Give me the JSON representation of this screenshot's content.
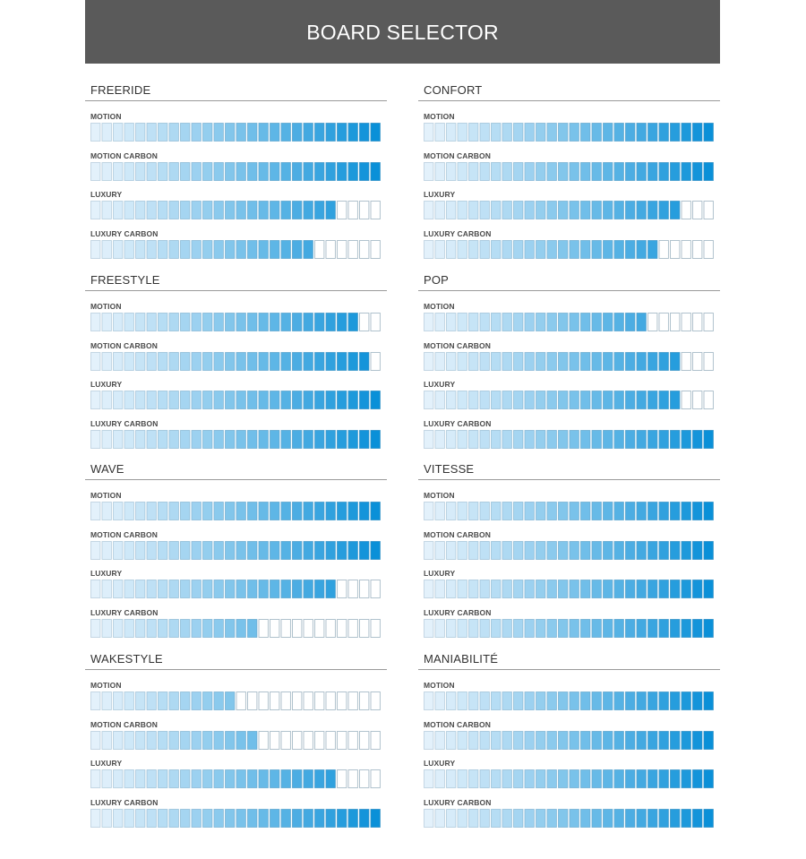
{
  "title": "BOARD SELECTOR",
  "total_segments": 26,
  "colors": {
    "header_bg": "#5a5a5a",
    "empty_border": "#a8bcc8",
    "gradient_start": "#e3f1fb",
    "gradient_end": "#0a90d8"
  },
  "boards": [
    "MOTION",
    "MOTION CARBON",
    "LUXURY",
    "LUXURY CARBON"
  ],
  "sections": [
    {
      "name": "FREERIDE",
      "ratings": [
        {
          "board": "MOTION",
          "filled": 26
        },
        {
          "board": "MOTION CARBON",
          "filled": 26
        },
        {
          "board": "LUXURY",
          "filled": 22
        },
        {
          "board": "LUXURY CARBON",
          "filled": 20
        }
      ]
    },
    {
      "name": "CONFORT",
      "ratings": [
        {
          "board": "MOTION",
          "filled": 26
        },
        {
          "board": "MOTION CARBON",
          "filled": 26
        },
        {
          "board": "LUXURY",
          "filled": 23
        },
        {
          "board": "LUXURY CARBON",
          "filled": 21
        }
      ]
    },
    {
      "name": "FREESTYLE",
      "ratings": [
        {
          "board": "MOTION",
          "filled": 24
        },
        {
          "board": "MOTION CARBON",
          "filled": 25
        },
        {
          "board": "LUXURY",
          "filled": 26
        },
        {
          "board": "LUXURY CARBON",
          "filled": 26
        }
      ]
    },
    {
      "name": "POP",
      "ratings": [
        {
          "board": "MOTION",
          "filled": 20
        },
        {
          "board": "MOTION CARBON",
          "filled": 23
        },
        {
          "board": "LUXURY",
          "filled": 23
        },
        {
          "board": "LUXURY CARBON",
          "filled": 26
        }
      ]
    },
    {
      "name": "WAVE",
      "ratings": [
        {
          "board": "MOTION",
          "filled": 26
        },
        {
          "board": "MOTION CARBON",
          "filled": 26
        },
        {
          "board": "LUXURY",
          "filled": 22
        },
        {
          "board": "LUXURY CARBON",
          "filled": 15
        }
      ]
    },
    {
      "name": "VITESSE",
      "ratings": [
        {
          "board": "MOTION",
          "filled": 26
        },
        {
          "board": "MOTION CARBON",
          "filled": 26
        },
        {
          "board": "LUXURY",
          "filled": 26
        },
        {
          "board": "LUXURY CARBON",
          "filled": 26
        }
      ]
    },
    {
      "name": "WAKESTYLE",
      "ratings": [
        {
          "board": "MOTION",
          "filled": 13
        },
        {
          "board": "MOTION CARBON",
          "filled": 15
        },
        {
          "board": "LUXURY",
          "filled": 22
        },
        {
          "board": "LUXURY CARBON",
          "filled": 26
        }
      ]
    },
    {
      "name": "MANIABILITÉ",
      "ratings": [
        {
          "board": "MOTION",
          "filled": 26
        },
        {
          "board": "MOTION CARBON",
          "filled": 26
        },
        {
          "board": "LUXURY",
          "filled": 26
        },
        {
          "board": "LUXURY CARBON",
          "filled": 26
        }
      ]
    }
  ]
}
